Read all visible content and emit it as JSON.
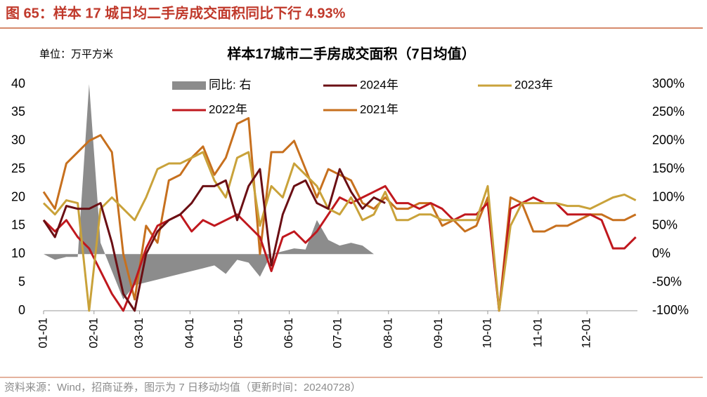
{
  "header": "图 65：样本 17 城日均二手房成交面积同比下行 4.93%",
  "source": "资料来源：Wind，招商证券，图示为 7 日移动均值（更新时间：20240728）",
  "chart_data": {
    "type": "line",
    "title": "样本17城市二手房成交面积（7日均值）",
    "unit_label": "单位：万平方米",
    "x": [
      0,
      7,
      14,
      21,
      28,
      35,
      42,
      49,
      56,
      63,
      70,
      77,
      84,
      91,
      98,
      105,
      112,
      119,
      126,
      133,
      140,
      147,
      154,
      161,
      168,
      175,
      182,
      189,
      196,
      203,
      210,
      217,
      224,
      231,
      238,
      245,
      252,
      259,
      266,
      273,
      280,
      287,
      294,
      301,
      308,
      315,
      322,
      329,
      336,
      343,
      350,
      357,
      364
    ],
    "xlim": [
      0,
      365
    ],
    "xticks": [
      {
        "value": 0,
        "label": "01-01"
      },
      {
        "value": 31,
        "label": "02-01"
      },
      {
        "value": 59,
        "label": "03-01"
      },
      {
        "value": 90,
        "label": "04-01"
      },
      {
        "value": 120,
        "label": "05-01"
      },
      {
        "value": 151,
        "label": "06-01"
      },
      {
        "value": 181,
        "label": "07-01"
      },
      {
        "value": 212,
        "label": "08-01"
      },
      {
        "value": 243,
        "label": "09-01"
      },
      {
        "value": 273,
        "label": "10-01"
      },
      {
        "value": 304,
        "label": "11-01"
      },
      {
        "value": 334,
        "label": "12-01"
      }
    ],
    "ylim": [
      0,
      40
    ],
    "yticks": [
      0,
      5,
      10,
      15,
      20,
      25,
      30,
      35,
      40
    ],
    "y2lim": [
      -100,
      300
    ],
    "y2ticks": [
      {
        "value": -100,
        "label": "-100%"
      },
      {
        "value": -50,
        "label": "-50%"
      },
      {
        "value": 0,
        "label": "0%"
      },
      {
        "value": 50,
        "label": "50%"
      },
      {
        "value": 100,
        "label": "100%"
      },
      {
        "value": 150,
        "label": "150%"
      },
      {
        "value": 200,
        "label": "200%"
      },
      {
        "value": 250,
        "label": "250%"
      },
      {
        "value": 300,
        "label": "300%"
      }
    ],
    "series": [
      {
        "name": "同比: 右",
        "type": "area",
        "axis": "y2",
        "color": "#8c8c8c",
        "values": [
          0,
          -10,
          -5,
          -5,
          300,
          20,
          -30,
          -80,
          -55,
          -50,
          -45,
          -40,
          -35,
          -30,
          -25,
          -20,
          -35,
          -10,
          -15,
          -40,
          0,
          5,
          10,
          8,
          60,
          25,
          15,
          20,
          15,
          0,
          0,
          null,
          null,
          null,
          null,
          null,
          null,
          null,
          null,
          null,
          null,
          null,
          null,
          null,
          null,
          null,
          null,
          null,
          null,
          null,
          null,
          null,
          null
        ]
      },
      {
        "name": "2024年",
        "type": "line",
        "color": "#6b0f14",
        "values": [
          16,
          13,
          18.5,
          18,
          18,
          19,
          12,
          3,
          0,
          10,
          14,
          16,
          17,
          19,
          22,
          22,
          23,
          16,
          22,
          25,
          8,
          17,
          22,
          23,
          19,
          18,
          25,
          21,
          18,
          20,
          19,
          null,
          null,
          null,
          null,
          null,
          null,
          null,
          null,
          null,
          null,
          null,
          null,
          null,
          null,
          null,
          null,
          null,
          null,
          null,
          null,
          null,
          null
        ]
      },
      {
        "name": "2023年",
        "type": "line",
        "color": "#c9a23a",
        "values": [
          19,
          17,
          19.5,
          19,
          0,
          18,
          20,
          18,
          16,
          20,
          25,
          26,
          26,
          27,
          28,
          23,
          20,
          27,
          28,
          15,
          22,
          20,
          26,
          24,
          22,
          18,
          17,
          20,
          16,
          17,
          21,
          16,
          16,
          17,
          17,
          16,
          16,
          16,
          16,
          22,
          0,
          15,
          19,
          19,
          19,
          19,
          18.5,
          18.5,
          18,
          19,
          20,
          20.5,
          19.5
        ]
      },
      {
        "name": "2022年",
        "type": "line",
        "color": "#c0181e",
        "values": [
          16,
          14,
          16,
          13,
          11,
          7,
          3,
          0,
          5,
          11,
          15,
          16,
          17,
          14,
          16,
          15,
          16,
          17,
          15,
          13,
          7,
          13,
          14,
          12,
          14,
          17,
          20,
          19,
          20,
          21,
          22,
          19,
          19,
          18,
          19,
          18,
          16,
          17,
          17,
          19,
          0,
          18,
          19,
          20,
          19,
          19,
          17,
          17,
          17,
          16,
          11,
          11,
          13
        ]
      },
      {
        "name": "2021年",
        "type": "line",
        "color": "#c7701e",
        "values": [
          21,
          18,
          26,
          28,
          30,
          31,
          28,
          10,
          2,
          15,
          12,
          23,
          24,
          27,
          29,
          24,
          27,
          33,
          34,
          10,
          28,
          28,
          30,
          25,
          20,
          25,
          24,
          23,
          19,
          18,
          20,
          18,
          18,
          19,
          19,
          15,
          16,
          14,
          15,
          20,
          0,
          20,
          19,
          14,
          14,
          15,
          15,
          16,
          17,
          17,
          16,
          16,
          17
        ]
      }
    ]
  }
}
